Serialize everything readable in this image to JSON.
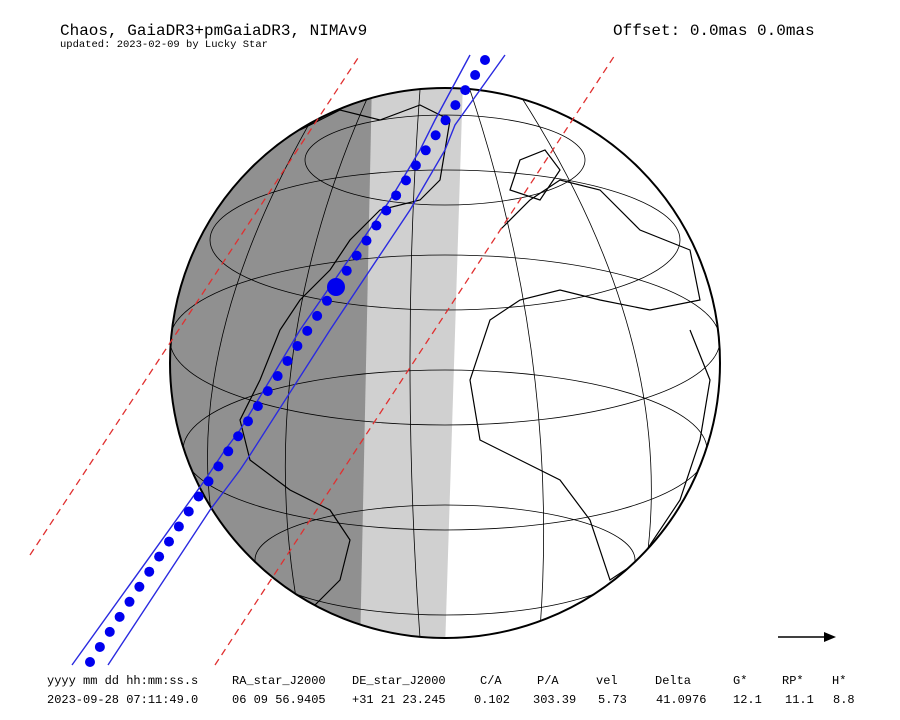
{
  "header": {
    "title": "Chaos, GaiaDR3+pmGaiaDR3, NIMAv9",
    "subtitle": "updated: 2023-02-09 by Lucky Star",
    "offset": "Offset: 0.0mas 0.0mas"
  },
  "table": {
    "headers": [
      "yyyy mm dd hh:mm:ss.s",
      "RA_star_J2000",
      "DE_star_J2000",
      "C/A",
      "P/A",
      "vel",
      "Delta",
      "G*",
      "RP*",
      "H*"
    ],
    "rows": [
      [
        "2023-09-28 07:11:49.0",
        "06 09 56.9405",
        "+31 21 23.245",
        "0.102",
        "303.39",
        "5.73",
        "41.0976",
        "12.1",
        "11.1",
        "8.8"
      ]
    ]
  }
}
